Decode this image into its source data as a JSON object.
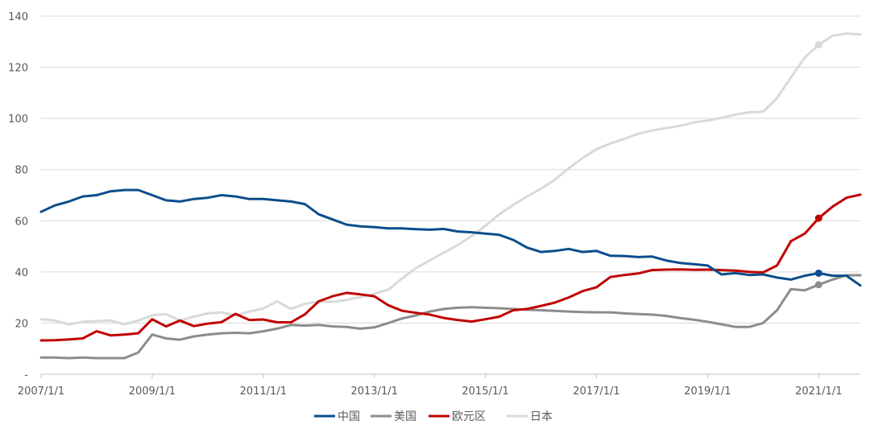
{
  "chart_data": {
    "type": "line",
    "title": "",
    "xlabel": "",
    "ylabel": "",
    "ylim": [
      0,
      140
    ],
    "y_ticks": [
      {
        "value": 0,
        "label": "-"
      },
      {
        "value": 20,
        "label": "20"
      },
      {
        "value": 40,
        "label": "40"
      },
      {
        "value": 60,
        "label": "60"
      },
      {
        "value": 80,
        "label": "80"
      },
      {
        "value": 100,
        "label": "100"
      },
      {
        "value": 120,
        "label": "120"
      },
      {
        "value": 140,
        "label": "140"
      }
    ],
    "x_range": [
      2007.0,
      2021.75
    ],
    "x_ticks": [
      {
        "value": 2007,
        "label": "2007/1/1"
      },
      {
        "value": 2009,
        "label": "2009/1/1"
      },
      {
        "value": 2011,
        "label": "2011/1/1"
      },
      {
        "value": 2013,
        "label": "2013/1/1"
      },
      {
        "value": 2015,
        "label": "2015/1/1"
      },
      {
        "value": 2017,
        "label": "2017/1/1"
      },
      {
        "value": 2019,
        "label": "2019/1/1"
      },
      {
        "value": 2021,
        "label": "2021/1/1"
      }
    ],
    "x": [
      2007.0,
      2007.25,
      2007.5,
      2007.75,
      2008.0,
      2008.25,
      2008.5,
      2008.75,
      2009.0,
      2009.25,
      2009.5,
      2009.75,
      2010.0,
      2010.25,
      2010.5,
      2010.75,
      2011.0,
      2011.25,
      2011.5,
      2011.75,
      2012.0,
      2012.25,
      2012.5,
      2012.75,
      2013.0,
      2013.25,
      2013.5,
      2013.75,
      2014.0,
      2014.25,
      2014.5,
      2014.75,
      2015.0,
      2015.25,
      2015.5,
      2015.75,
      2016.0,
      2016.25,
      2016.5,
      2016.75,
      2017.0,
      2017.25,
      2017.5,
      2017.75,
      2018.0,
      2018.25,
      2018.5,
      2018.75,
      2019.0,
      2019.25,
      2019.5,
      2019.75,
      2020.0,
      2020.25,
      2020.5,
      2020.75,
      2021.0,
      2021.25,
      2021.5,
      2021.75
    ],
    "legend_position": "bottom",
    "series": [
      {
        "name": "中国",
        "color": "#0B4D8C",
        "values": [
          63.5,
          66,
          67.5,
          69.5,
          70,
          71.5,
          72,
          72,
          70,
          68,
          67.5,
          68.5,
          69,
          70,
          69.5,
          68.5,
          68.5,
          68,
          67.5,
          66.5,
          62.5,
          60.5,
          58.5,
          57.8,
          57.5,
          57,
          57,
          56.7,
          56.5,
          56.8,
          55.8,
          55.5,
          55,
          54.5,
          52.5,
          49.5,
          47.8,
          48.2,
          49,
          47.8,
          48.2,
          46.3,
          46.2,
          45.8,
          46,
          44.5,
          43.5,
          43,
          42.5,
          39,
          39.5,
          38.8,
          39,
          37.8,
          37,
          38.5,
          39.5,
          38.5,
          38.5,
          34.7
        ],
        "marker_index": 56
      },
      {
        "name": "美国",
        "color": "#8C8C8C",
        "values": [
          6.5,
          6.5,
          6.3,
          6.5,
          6.3,
          6.3,
          6.3,
          8.5,
          15.5,
          14,
          13.5,
          14.8,
          15.5,
          16,
          16.2,
          16,
          16.8,
          17.8,
          19.3,
          19,
          19.3,
          18.7,
          18.5,
          17.8,
          18.3,
          20,
          21.8,
          23,
          24.5,
          25.5,
          26,
          26.2,
          26,
          25.8,
          25.5,
          25.2,
          25,
          24.8,
          24.5,
          24.3,
          24.2,
          24.2,
          23.8,
          23.5,
          23.3,
          22.8,
          22,
          21.3,
          20.5,
          19.5,
          18.5,
          18.5,
          20,
          25,
          33.3,
          32.8,
          35,
          37,
          38.7,
          38.7
        ],
        "marker_index": 56
      },
      {
        "name": "欧元区",
        "color": "#C00000",
        "values": [
          13.2,
          13.3,
          13.6,
          14,
          16.8,
          15.2,
          15.5,
          16,
          21.5,
          18.7,
          21,
          18.8,
          19.8,
          20.4,
          23.6,
          21.2,
          21.4,
          20.3,
          20.3,
          23.4,
          28.5,
          30.5,
          31.8,
          31.2,
          30.5,
          27,
          24.8,
          24,
          23.3,
          22,
          21.2,
          20.6,
          21.5,
          22.5,
          25,
          25.5,
          26.7,
          28,
          30,
          32.5,
          34,
          38,
          38.8,
          39.4,
          40.7,
          40.9,
          41,
          40.8,
          40.9,
          40.7,
          40.5,
          40,
          39.8,
          42.5,
          52,
          55,
          61,
          65.5,
          69,
          70.2
        ],
        "marker_index": 56
      },
      {
        "name": "日本",
        "color": "#D9D9D9",
        "values": [
          21.5,
          21,
          19.5,
          20.5,
          20.8,
          21,
          19.5,
          21,
          23,
          23.5,
          21,
          22.5,
          23.8,
          24.2,
          23,
          24.5,
          25.7,
          28.5,
          25.5,
          27.5,
          28.5,
          28.3,
          29,
          30.2,
          31.5,
          33,
          37.5,
          41.5,
          44.5,
          47.5,
          50.5,
          54,
          58,
          62.5,
          66.2,
          69.5,
          72.5,
          76,
          80.5,
          84.5,
          88,
          90.2,
          92,
          94,
          95.3,
          96.2,
          97.1,
          98.4,
          99.2,
          100.2,
          101.5,
          102.4,
          102.6,
          108,
          116,
          123.8,
          128.8,
          132.3,
          133.2,
          132.8
        ],
        "marker_index": 56
      }
    ]
  }
}
